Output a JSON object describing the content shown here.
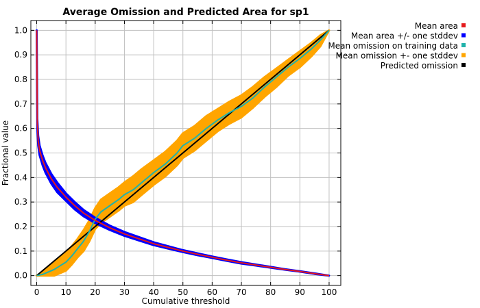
{
  "chart_data": {
    "type": "line",
    "title": "Average Omission and Predicted Area for sp1",
    "xlabel": "Cumulative threshold",
    "ylabel": "Fractional value",
    "xlim": [
      -2,
      104
    ],
    "ylim": [
      -0.04,
      1.04
    ],
    "xticks": [
      0,
      10,
      20,
      30,
      40,
      50,
      60,
      70,
      80,
      90,
      100
    ],
    "yticks": [
      0.0,
      0.1,
      0.2,
      0.3,
      0.4,
      0.5,
      0.6,
      0.7,
      0.8,
      0.9,
      1.0
    ],
    "xtick_labels": [
      "0",
      "10",
      "20",
      "30",
      "40",
      "50",
      "60",
      "70",
      "80",
      "90",
      "100"
    ],
    "ytick_labels": [
      "0.0",
      "0.1",
      "0.2",
      "0.3",
      "0.4",
      "0.5",
      "0.6",
      "0.7",
      "0.8",
      "0.9",
      "1.0"
    ],
    "grid": true,
    "legend_position": "outside-top-right",
    "series": [
      {
        "name": "Mean area",
        "role": "line",
        "color": "#e41a1c",
        "x": [
          0,
          0.2,
          0.5,
          1,
          2,
          3,
          5,
          7,
          10,
          13,
          16,
          20,
          25,
          30,
          35,
          40,
          45,
          50,
          55,
          60,
          65,
          70,
          75,
          80,
          85,
          90,
          95,
          100
        ],
        "y": [
          1.0,
          0.62,
          0.55,
          0.51,
          0.47,
          0.44,
          0.395,
          0.36,
          0.32,
          0.285,
          0.255,
          0.225,
          0.195,
          0.17,
          0.15,
          0.13,
          0.115,
          0.1,
          0.087,
          0.075,
          0.063,
          0.052,
          0.043,
          0.034,
          0.025,
          0.017,
          0.008,
          0.0
        ]
      },
      {
        "name": "Mean area +/- one stddev",
        "role": "band",
        "color": "#0000ff",
        "x": [
          0,
          0.2,
          0.5,
          1,
          2,
          3,
          5,
          7,
          10,
          13,
          16,
          20,
          25,
          30,
          35,
          40,
          45,
          50,
          55,
          60,
          65,
          70,
          75,
          80,
          85,
          90,
          95,
          100
        ],
        "upper": [
          1.0,
          0.64,
          0.57,
          0.53,
          0.49,
          0.46,
          0.415,
          0.38,
          0.335,
          0.3,
          0.268,
          0.236,
          0.204,
          0.178,
          0.157,
          0.136,
          0.12,
          0.104,
          0.091,
          0.078,
          0.066,
          0.055,
          0.045,
          0.036,
          0.026,
          0.018,
          0.009,
          0.0
        ],
        "lower": [
          1.0,
          0.6,
          0.53,
          0.49,
          0.45,
          0.42,
          0.375,
          0.34,
          0.305,
          0.27,
          0.242,
          0.214,
          0.186,
          0.162,
          0.143,
          0.124,
          0.11,
          0.096,
          0.083,
          0.072,
          0.06,
          0.049,
          0.041,
          0.032,
          0.024,
          0.016,
          0.007,
          0.0
        ]
      },
      {
        "name": "Mean omission on training data",
        "role": "line",
        "color": "#20b2aa",
        "x": [
          0,
          2,
          4,
          6,
          8,
          10,
          12,
          14,
          16,
          18,
          20,
          22,
          25,
          28,
          30,
          33,
          36,
          40,
          44,
          48,
          50,
          54,
          58,
          62,
          66,
          70,
          74,
          78,
          82,
          86,
          90,
          94,
          97,
          100
        ],
        "y": [
          0.0,
          0.005,
          0.015,
          0.025,
          0.04,
          0.055,
          0.08,
          0.11,
          0.14,
          0.18,
          0.23,
          0.26,
          0.285,
          0.31,
          0.33,
          0.35,
          0.38,
          0.42,
          0.455,
          0.5,
          0.53,
          0.56,
          0.6,
          0.635,
          0.665,
          0.69,
          0.725,
          0.77,
          0.81,
          0.85,
          0.885,
          0.925,
          0.96,
          1.0
        ]
      },
      {
        "name": "Mean omission +- one stddev",
        "role": "band",
        "color": "#ffa500",
        "x": [
          0,
          2,
          4,
          6,
          8,
          10,
          12,
          14,
          16,
          18,
          20,
          22,
          25,
          28,
          30,
          33,
          36,
          40,
          44,
          48,
          50,
          54,
          58,
          62,
          66,
          70,
          74,
          78,
          82,
          86,
          90,
          94,
          97,
          100
        ],
        "upper": [
          0.0,
          0.015,
          0.035,
          0.055,
          0.075,
          0.095,
          0.12,
          0.15,
          0.185,
          0.225,
          0.275,
          0.31,
          0.335,
          0.36,
          0.38,
          0.405,
          0.435,
          0.47,
          0.505,
          0.55,
          0.58,
          0.61,
          0.65,
          0.68,
          0.71,
          0.735,
          0.77,
          0.81,
          0.845,
          0.88,
          0.915,
          0.95,
          0.98,
          1.0
        ],
        "lower": [
          0.0,
          0.0,
          0.0,
          0.0,
          0.01,
          0.02,
          0.045,
          0.075,
          0.1,
          0.14,
          0.19,
          0.215,
          0.24,
          0.265,
          0.285,
          0.3,
          0.33,
          0.37,
          0.405,
          0.45,
          0.48,
          0.51,
          0.55,
          0.59,
          0.62,
          0.645,
          0.685,
          0.73,
          0.77,
          0.815,
          0.85,
          0.895,
          0.935,
          1.0
        ]
      },
      {
        "name": "Predicted omission",
        "role": "line",
        "color": "#000000",
        "x": [
          0,
          100
        ],
        "y": [
          0.0,
          1.0
        ]
      }
    ]
  }
}
